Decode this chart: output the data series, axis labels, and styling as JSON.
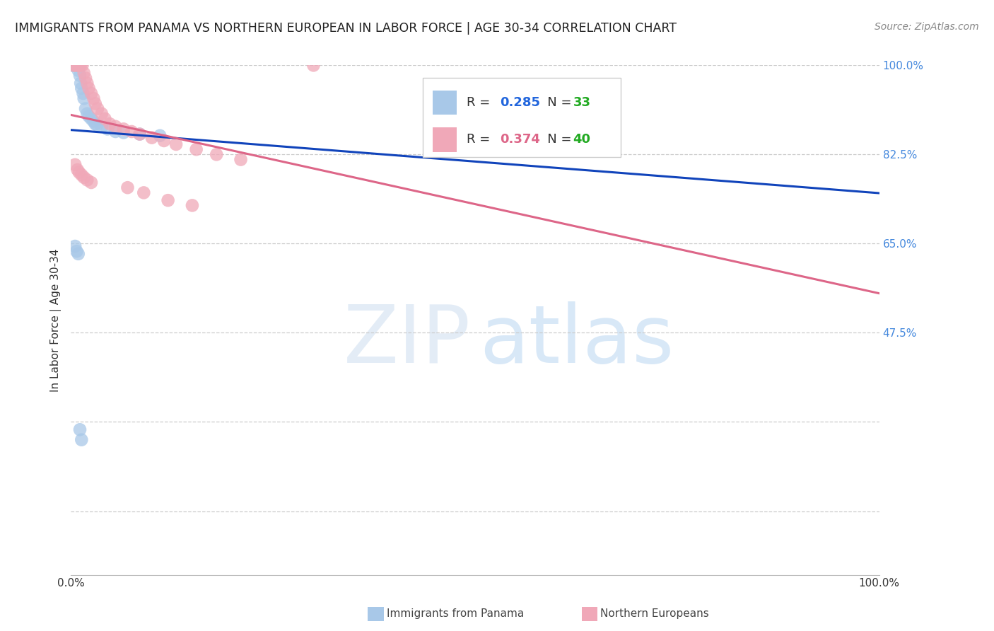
{
  "title": "IMMIGRANTS FROM PANAMA VS NORTHERN EUROPEAN IN LABOR FORCE | AGE 30-34 CORRELATION CHART",
  "source": "Source: ZipAtlas.com",
  "ylabel": "In Labor Force | Age 30-34",
  "xlim": [
    0.0,
    1.0
  ],
  "ylim": [
    0.0,
    1.0
  ],
  "panama_R": "0.285",
  "panama_N": "33",
  "northern_R": "0.374",
  "northern_N": "40",
  "panama_scatter_color": "#a8c8e8",
  "northern_scatter_color": "#f0a8b8",
  "panama_line_color": "#1144bb",
  "northern_line_color": "#dd6688",
  "legend_blue_color": "#2266dd",
  "legend_green_color": "#22aa22",
  "legend_pink_color": "#dd6688",
  "title_color": "#222222",
  "source_color": "#888888",
  "grid_color": "#cccccc",
  "right_tick_color": "#4488dd",
  "background_color": "#ffffff",
  "watermark_color_zip": "#ccddf0",
  "watermark_color_atlas": "#aaccee",
  "ytick_vals": [
    1.0,
    0.825,
    0.65,
    0.475,
    0.3,
    0.125
  ],
  "ytick_labels_right": [
    "100.0%",
    "82.5%",
    "65.0%",
    "47.5%",
    "",
    ""
  ],
  "xtick_vals": [
    0.0,
    0.2,
    0.4,
    0.6,
    0.8,
    1.0
  ],
  "xtick_labels": [
    "0.0%",
    "",
    "",
    "",
    "",
    "100.0%"
  ],
  "legend_bottom_panama": "Immigrants from Panama",
  "legend_bottom_northern": "Northern Europeans",
  "panama_x": [
    0.002,
    0.003,
    0.004,
    0.005,
    0.006,
    0.007,
    0.008,
    0.009,
    0.009,
    0.01,
    0.011,
    0.012,
    0.013,
    0.015,
    0.016,
    0.018,
    0.02,
    0.022,
    0.025,
    0.028,
    0.03,
    0.032,
    0.038,
    0.045,
    0.055,
    0.065,
    0.085,
    0.11,
    0.005,
    0.007,
    0.009,
    0.011,
    0.013
  ],
  "panama_y": [
    1.0,
    1.0,
    1.0,
    1.0,
    1.0,
    1.0,
    1.0,
    1.0,
    0.99,
    1.0,
    0.98,
    0.965,
    0.955,
    0.945,
    0.935,
    0.915,
    0.905,
    0.9,
    0.895,
    0.89,
    0.885,
    0.883,
    0.88,
    0.875,
    0.87,
    0.868,
    0.865,
    0.862,
    0.645,
    0.635,
    0.63,
    0.285,
    0.265
  ],
  "northern_x": [
    0.003,
    0.005,
    0.007,
    0.009,
    0.01,
    0.012,
    0.014,
    0.016,
    0.018,
    0.02,
    0.022,
    0.025,
    0.028,
    0.03,
    0.033,
    0.038,
    0.042,
    0.048,
    0.055,
    0.065,
    0.075,
    0.085,
    0.1,
    0.115,
    0.13,
    0.155,
    0.18,
    0.21,
    0.07,
    0.09,
    0.12,
    0.15,
    0.005,
    0.008,
    0.01,
    0.013,
    0.016,
    0.02,
    0.025,
    0.3
  ],
  "northern_y": [
    1.0,
    1.0,
    1.0,
    1.0,
    1.0,
    1.0,
    1.0,
    0.985,
    0.975,
    0.965,
    0.955,
    0.945,
    0.935,
    0.925,
    0.915,
    0.905,
    0.895,
    0.885,
    0.88,
    0.875,
    0.87,
    0.865,
    0.858,
    0.852,
    0.845,
    0.835,
    0.825,
    0.815,
    0.76,
    0.75,
    0.735,
    0.725,
    0.805,
    0.795,
    0.79,
    0.785,
    0.78,
    0.775,
    0.77,
    1.0
  ]
}
